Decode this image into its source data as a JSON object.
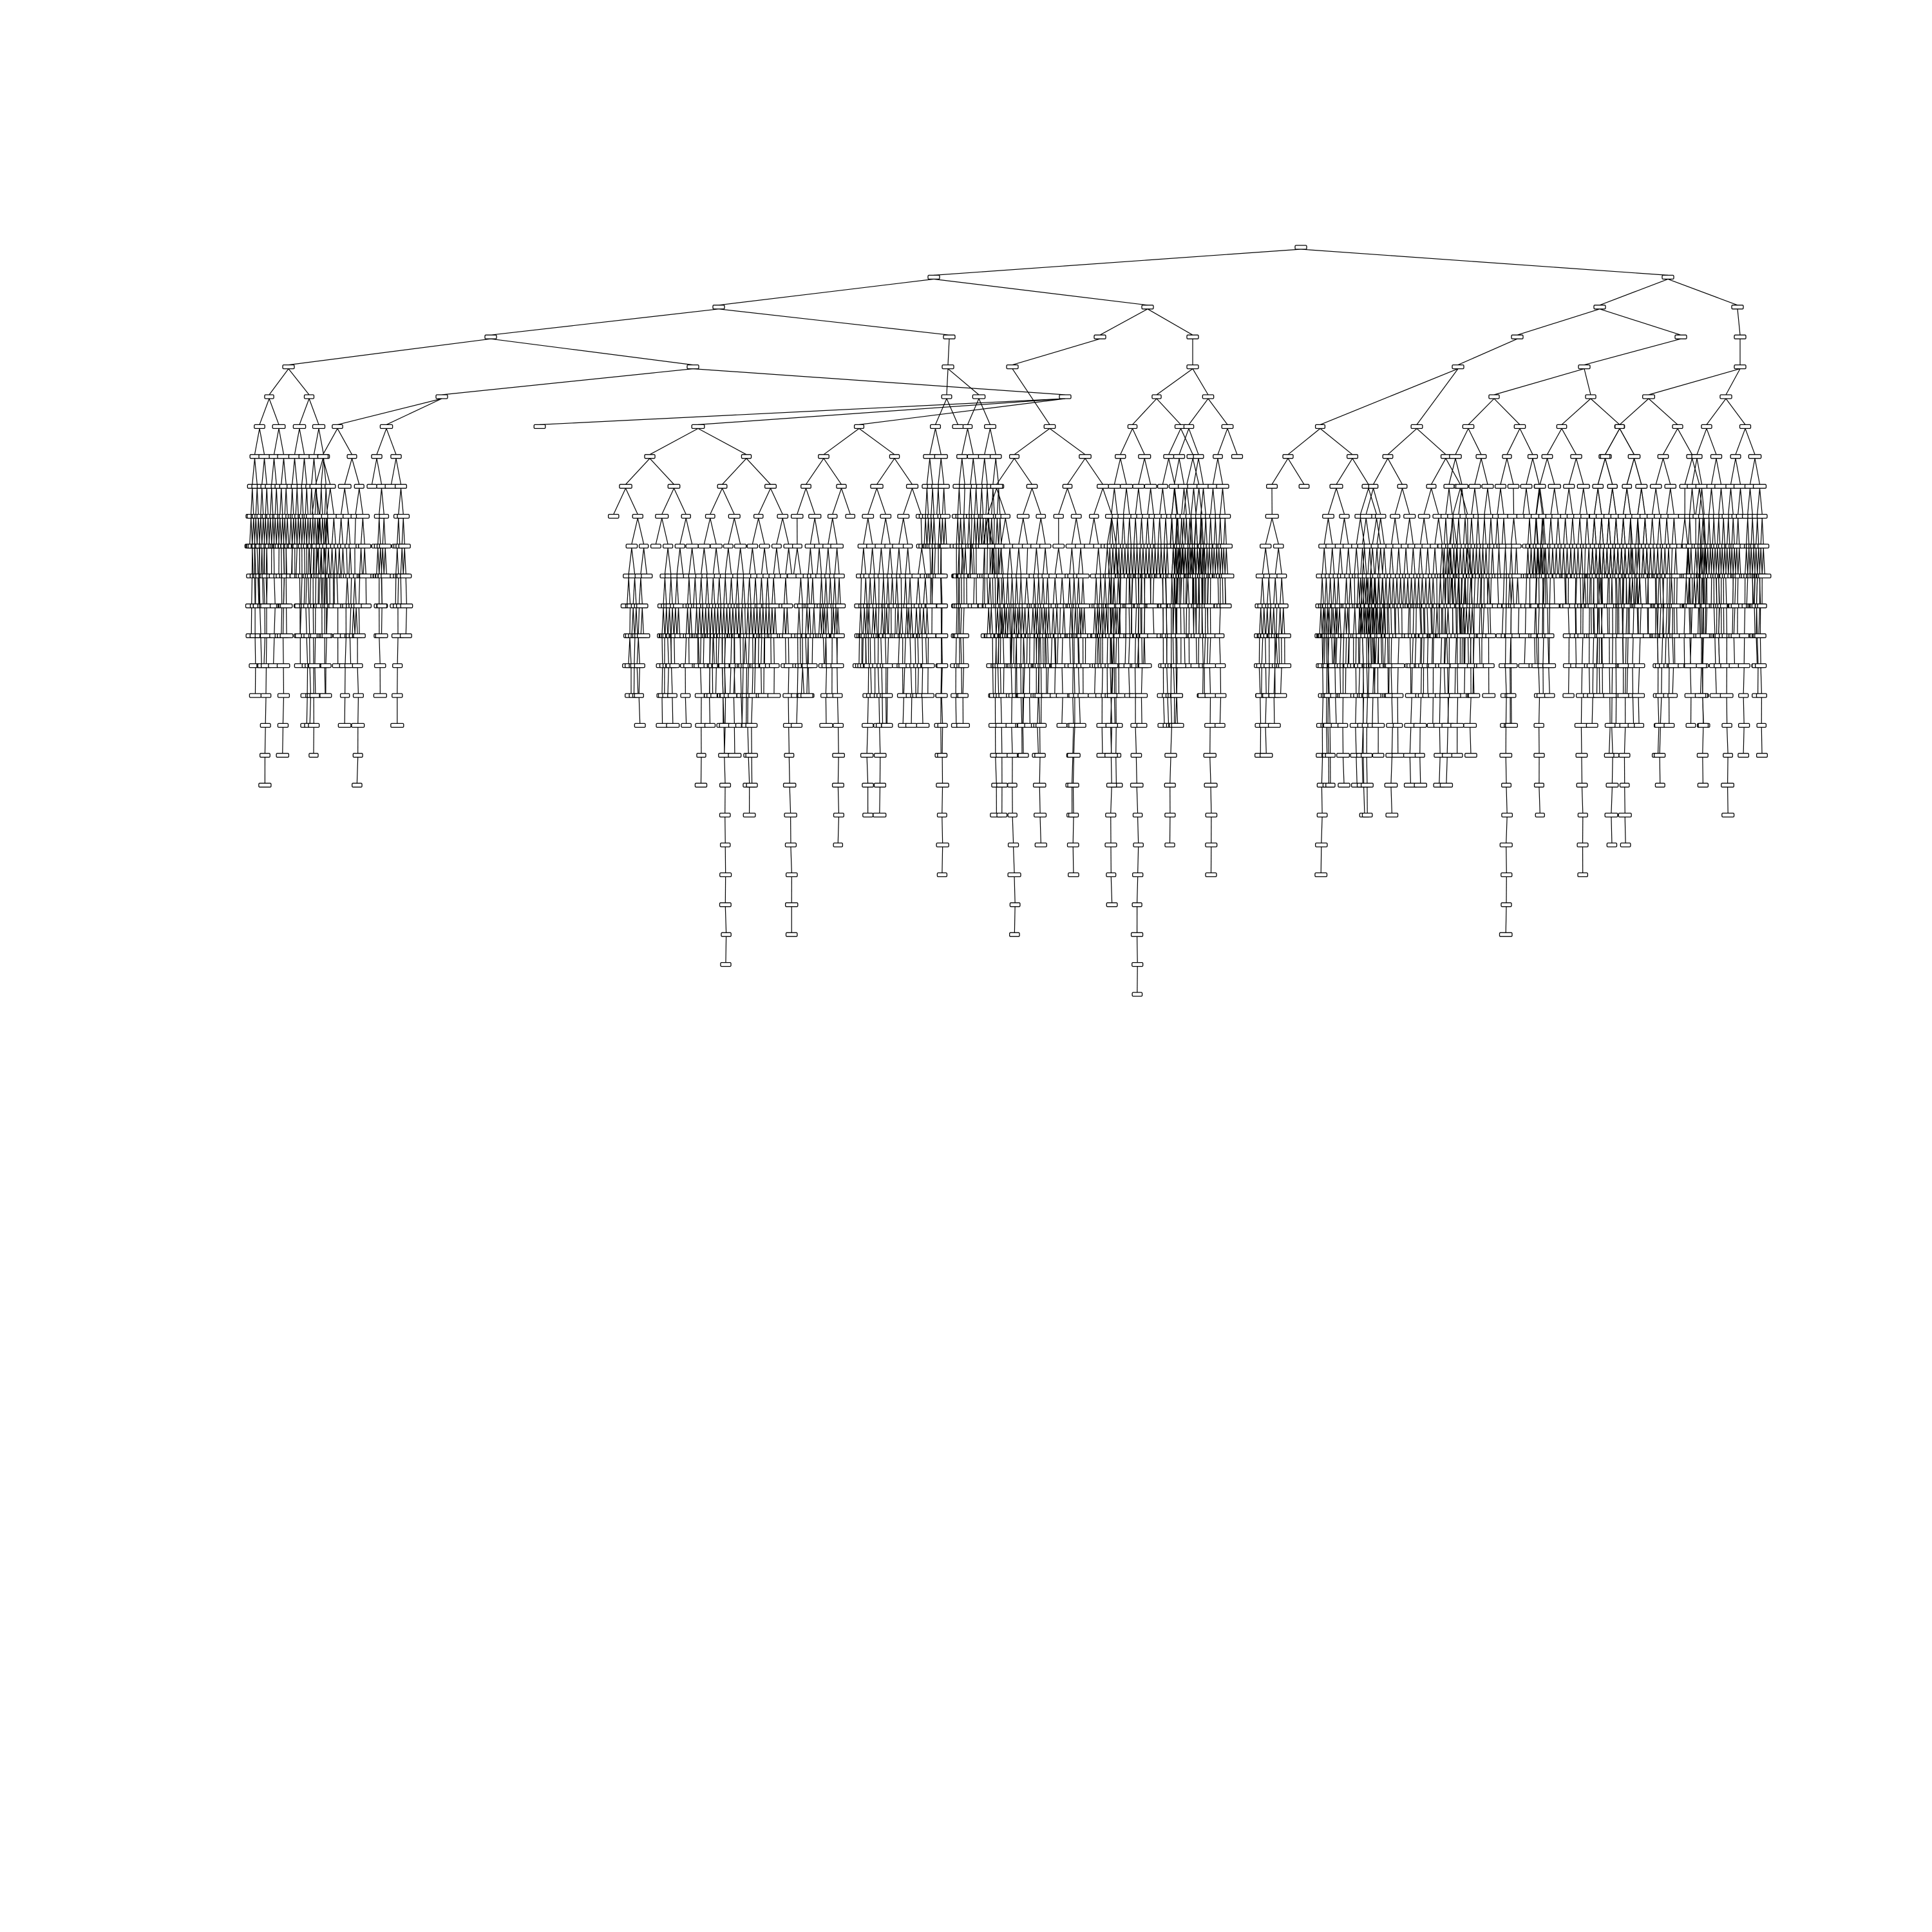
{
  "diagram": {
    "kind": "decision-tree",
    "background": "#ffffff",
    "line_color": "#000000",
    "node_fill": "#ffffff",
    "node_labels_legible": false
  }
}
